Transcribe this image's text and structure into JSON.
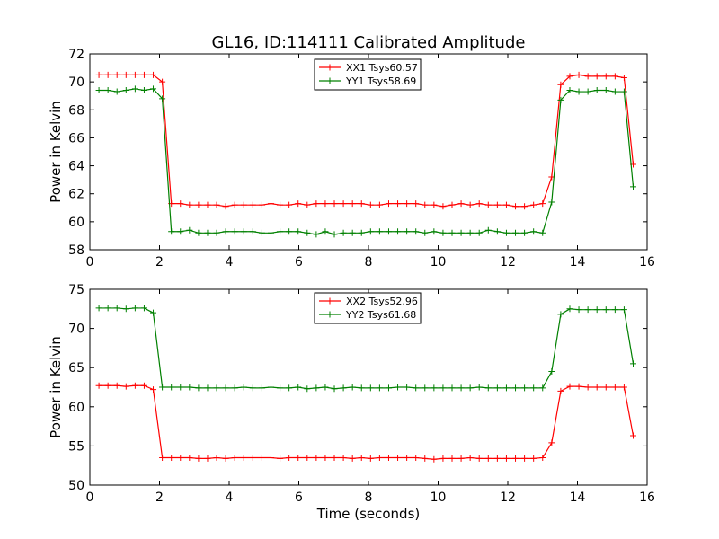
{
  "figure_title": "GL16, ID:114111 Calibrated Amplitude",
  "chart_data": [
    {
      "type": "line",
      "title": "GL16, ID:114111 Calibrated Amplitude",
      "xlabel": "",
      "ylabel": "Power in Kelvin",
      "xlim": [
        0,
        16
      ],
      "ylim": [
        58,
        72
      ],
      "xticks": [
        0,
        2,
        4,
        6,
        8,
        10,
        12,
        14,
        16
      ],
      "yticks": [
        58,
        60,
        62,
        64,
        66,
        68,
        70,
        72
      ],
      "grid": false,
      "legend_position": "top-center",
      "x": [
        0.26,
        0.52,
        0.78,
        1.04,
        1.3,
        1.56,
        1.82,
        2.08,
        2.34,
        2.6,
        2.86,
        3.12,
        3.38,
        3.64,
        3.9,
        4.16,
        4.42,
        4.68,
        4.94,
        5.2,
        5.46,
        5.72,
        5.98,
        6.24,
        6.5,
        6.76,
        7.02,
        7.28,
        7.54,
        7.8,
        8.06,
        8.32,
        8.58,
        8.84,
        9.1,
        9.36,
        9.62,
        9.88,
        10.14,
        10.4,
        10.66,
        10.92,
        11.18,
        11.44,
        11.7,
        11.96,
        12.22,
        12.48,
        12.74,
        13.0,
        13.26,
        13.52,
        13.78,
        14.04,
        14.3,
        14.56,
        14.82,
        15.08,
        15.34,
        15.6
      ],
      "series": [
        {
          "name": "XX1 Tsys60.57",
          "color": "#ff0000",
          "values": [
            70.5,
            70.5,
            70.5,
            70.5,
            70.5,
            70.5,
            70.5,
            70.0,
            61.3,
            61.3,
            61.2,
            61.2,
            61.2,
            61.2,
            61.1,
            61.2,
            61.2,
            61.2,
            61.2,
            61.3,
            61.2,
            61.2,
            61.3,
            61.2,
            61.3,
            61.3,
            61.3,
            61.3,
            61.3,
            61.3,
            61.2,
            61.2,
            61.3,
            61.3,
            61.3,
            61.3,
            61.2,
            61.2,
            61.1,
            61.2,
            61.3,
            61.2,
            61.3,
            61.2,
            61.2,
            61.2,
            61.1,
            61.1,
            61.2,
            61.3,
            63.2,
            69.8,
            70.4,
            70.5,
            70.4,
            70.4,
            70.4,
            70.4,
            70.3,
            64.1
          ]
        },
        {
          "name": "YY1 Tsys58.69",
          "color": "#008000",
          "values": [
            69.4,
            69.4,
            69.3,
            69.4,
            69.5,
            69.4,
            69.5,
            68.8,
            59.3,
            59.3,
            59.4,
            59.2,
            59.2,
            59.2,
            59.3,
            59.3,
            59.3,
            59.3,
            59.2,
            59.2,
            59.3,
            59.3,
            59.3,
            59.2,
            59.1,
            59.3,
            59.1,
            59.2,
            59.2,
            59.2,
            59.3,
            59.3,
            59.3,
            59.3,
            59.3,
            59.3,
            59.2,
            59.3,
            59.2,
            59.2,
            59.2,
            59.2,
            59.2,
            59.4,
            59.3,
            59.2,
            59.2,
            59.2,
            59.3,
            59.2,
            61.4,
            68.7,
            69.4,
            69.3,
            69.3,
            69.4,
            69.4,
            69.3,
            69.3,
            62.5
          ]
        }
      ]
    },
    {
      "type": "line",
      "title": "",
      "xlabel": "Time (seconds)",
      "ylabel": "Power in Kelvin",
      "xlim": [
        0,
        16
      ],
      "ylim": [
        50,
        75
      ],
      "xticks": [
        0,
        2,
        4,
        6,
        8,
        10,
        12,
        14,
        16
      ],
      "yticks": [
        50,
        55,
        60,
        65,
        70,
        75
      ],
      "grid": false,
      "legend_position": "top-center",
      "x": [
        0.26,
        0.52,
        0.78,
        1.04,
        1.3,
        1.56,
        1.82,
        2.08,
        2.34,
        2.6,
        2.86,
        3.12,
        3.38,
        3.64,
        3.9,
        4.16,
        4.42,
        4.68,
        4.94,
        5.2,
        5.46,
        5.72,
        5.98,
        6.24,
        6.5,
        6.76,
        7.02,
        7.28,
        7.54,
        7.8,
        8.06,
        8.32,
        8.58,
        8.84,
        9.1,
        9.36,
        9.62,
        9.88,
        10.14,
        10.4,
        10.66,
        10.92,
        11.18,
        11.44,
        11.7,
        11.96,
        12.22,
        12.48,
        12.74,
        13.0,
        13.26,
        13.52,
        13.78,
        14.04,
        14.3,
        14.56,
        14.82,
        15.08,
        15.34,
        15.6
      ],
      "series": [
        {
          "name": "XX2 Tsys52.96",
          "color": "#ff0000",
          "values": [
            62.7,
            62.7,
            62.7,
            62.6,
            62.7,
            62.7,
            62.2,
            53.5,
            53.5,
            53.5,
            53.5,
            53.4,
            53.4,
            53.5,
            53.4,
            53.5,
            53.5,
            53.5,
            53.5,
            53.5,
            53.4,
            53.5,
            53.5,
            53.5,
            53.5,
            53.5,
            53.5,
            53.5,
            53.4,
            53.5,
            53.4,
            53.5,
            53.5,
            53.5,
            53.5,
            53.5,
            53.4,
            53.3,
            53.4,
            53.4,
            53.4,
            53.5,
            53.4,
            53.4,
            53.4,
            53.4,
            53.4,
            53.4,
            53.4,
            53.5,
            55.4,
            62.0,
            62.6,
            62.6,
            62.5,
            62.5,
            62.5,
            62.5,
            62.5,
            56.3
          ]
        },
        {
          "name": "YY2 Tsys61.68",
          "color": "#008000",
          "values": [
            72.6,
            72.6,
            72.6,
            72.5,
            72.6,
            72.6,
            72.0,
            62.5,
            62.5,
            62.5,
            62.5,
            62.4,
            62.4,
            62.4,
            62.4,
            62.4,
            62.5,
            62.4,
            62.4,
            62.5,
            62.4,
            62.4,
            62.5,
            62.3,
            62.4,
            62.5,
            62.3,
            62.4,
            62.5,
            62.4,
            62.4,
            62.4,
            62.4,
            62.5,
            62.5,
            62.4,
            62.4,
            62.4,
            62.4,
            62.4,
            62.4,
            62.4,
            62.5,
            62.4,
            62.4,
            62.4,
            62.4,
            62.4,
            62.4,
            62.4,
            64.5,
            71.8,
            72.5,
            72.4,
            72.4,
            72.4,
            72.4,
            72.4,
            72.4,
            65.5
          ]
        }
      ]
    }
  ]
}
